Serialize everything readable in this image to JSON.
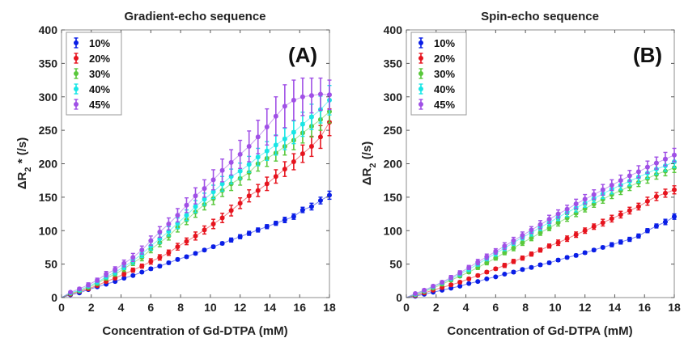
{
  "chart_data": [
    {
      "type": "scatter",
      "title": "Gradient-echo sequence",
      "panel_label": "(A)",
      "ylabel_parts": [
        "ΔR",
        "2",
        " * (/s)"
      ],
      "xlabel": "Concentration of Gd-DTPA (mM)",
      "xlim": [
        0,
        18
      ],
      "ylim": [
        0,
        400
      ],
      "x_ticks": [
        0,
        2,
        4,
        6,
        8,
        10,
        12,
        14,
        16,
        18
      ],
      "y_ticks": [
        0,
        50,
        100,
        150,
        200,
        250,
        300,
        350,
        400
      ],
      "legend_position": "top-left",
      "grid": false,
      "error_bars": true,
      "fit_lines": true,
      "x": [
        0.6,
        1.2,
        1.8,
        2.4,
        3.0,
        3.6,
        4.2,
        4.8,
        5.4,
        6.0,
        6.6,
        7.2,
        7.8,
        8.4,
        9.0,
        9.6,
        10.2,
        10.8,
        11.4,
        12.0,
        12.6,
        13.2,
        13.8,
        14.4,
        15.0,
        15.6,
        16.2,
        16.8,
        17.4,
        18.0
      ],
      "series": [
        {
          "name": "10%",
          "color": "#0a1ee6",
          "values": [
            4,
            7,
            12,
            16,
            20,
            24,
            29,
            33,
            38,
            43,
            47,
            52,
            57,
            61,
            66,
            71,
            76,
            81,
            86,
            91,
            96,
            101,
            106,
            111,
            116,
            121,
            131,
            136,
            145,
            153
          ],
          "errors": [
            1,
            1,
            1,
            1,
            1,
            1,
            1,
            1,
            1,
            2,
            2,
            2,
            2,
            2,
            2,
            2,
            2,
            2,
            3,
            3,
            3,
            3,
            3,
            3,
            4,
            4,
            4,
            5,
            5,
            6
          ]
        },
        {
          "name": "20%",
          "color": "#e6141e",
          "values": [
            5,
            9,
            13,
            18,
            24,
            29,
            35,
            41,
            47,
            54,
            60,
            67,
            76,
            84,
            92,
            101,
            110,
            119,
            130,
            141,
            152,
            160,
            170,
            181,
            192,
            203,
            215,
            226,
            240,
            262
          ],
          "errors": [
            1,
            1,
            2,
            2,
            2,
            2,
            3,
            3,
            3,
            4,
            4,
            4,
            5,
            5,
            6,
            6,
            7,
            7,
            8,
            8,
            9,
            9,
            10,
            10,
            11,
            12,
            13,
            15,
            17,
            20
          ]
        },
        {
          "name": "30%",
          "color": "#5ac83c",
          "values": [
            6,
            10,
            15,
            21,
            29,
            35,
            43,
            52,
            60,
            72,
            82,
            92,
            105,
            116,
            128,
            139,
            148,
            160,
            170,
            178,
            187,
            200,
            208,
            216,
            226,
            235,
            246,
            256,
            266,
            278
          ],
          "errors": [
            1,
            2,
            2,
            3,
            3,
            3,
            4,
            4,
            5,
            5,
            6,
            6,
            7,
            7,
            8,
            8,
            9,
            9,
            10,
            10,
            11,
            11,
            12,
            12,
            13,
            14,
            15,
            16,
            16,
            17
          ]
        },
        {
          "name": "40%",
          "color": "#19e6e6",
          "values": [
            7,
            11,
            17,
            23,
            31,
            38,
            46,
            55,
            65,
            77,
            88,
            99,
            111,
            123,
            136,
            147,
            158,
            170,
            181,
            189,
            199,
            210,
            219,
            228,
            237,
            247,
            259,
            270,
            281,
            295
          ],
          "errors": [
            1,
            2,
            2,
            3,
            3,
            4,
            4,
            5,
            5,
            6,
            7,
            7,
            8,
            8,
            9,
            9,
            10,
            11,
            11,
            12,
            12,
            13,
            14,
            15,
            16,
            17,
            18,
            19,
            20,
            22
          ]
        },
        {
          "name": "45%",
          "color": "#a050e6",
          "values": [
            8,
            13,
            19,
            26,
            35,
            42,
            51,
            60,
            71,
            85,
            98,
            110,
            123,
            138,
            152,
            163,
            176,
            190,
            202,
            214,
            226,
            240,
            255,
            271,
            286,
            295,
            300,
            302,
            304,
            303
          ],
          "errors": [
            1,
            2,
            3,
            3,
            4,
            4,
            5,
            6,
            6,
            7,
            8,
            9,
            10,
            11,
            12,
            13,
            15,
            17,
            19,
            21,
            23,
            25,
            27,
            29,
            32,
            30,
            28,
            26,
            24,
            22
          ]
        }
      ]
    },
    {
      "type": "scatter",
      "title": "Spin-echo sequence",
      "panel_label": "(B)",
      "ylabel_parts": [
        "ΔR",
        "2",
        " (/s)"
      ],
      "xlabel": "Concentration of Gd-DTPA (mM)",
      "xlim": [
        0,
        18
      ],
      "ylim": [
        0,
        400
      ],
      "x_ticks": [
        0,
        2,
        4,
        6,
        8,
        10,
        12,
        14,
        16,
        18
      ],
      "y_ticks": [
        0,
        50,
        100,
        150,
        200,
        250,
        300,
        350,
        400
      ],
      "legend_position": "top-left",
      "grid": false,
      "error_bars": true,
      "fit_lines": true,
      "x": [
        0.6,
        1.2,
        1.8,
        2.4,
        3.0,
        3.6,
        4.2,
        4.8,
        5.4,
        6.0,
        6.6,
        7.2,
        7.8,
        8.4,
        9.0,
        9.6,
        10.2,
        10.8,
        11.4,
        12.0,
        12.6,
        13.2,
        13.8,
        14.4,
        15.0,
        15.6,
        16.2,
        16.8,
        17.4,
        18.0
      ],
      "series": [
        {
          "name": "10%",
          "color": "#0a1ee6",
          "values": [
            2,
            5,
            8,
            11,
            14,
            17,
            21,
            24,
            28,
            31,
            35,
            38,
            42,
            45,
            49,
            52,
            56,
            60,
            63,
            67,
            71,
            75,
            79,
            83,
            87,
            92,
            100,
            107,
            113,
            121
          ],
          "errors": [
            1,
            1,
            1,
            1,
            1,
            1,
            1,
            1,
            1,
            1,
            1,
            2,
            2,
            2,
            2,
            2,
            2,
            2,
            2,
            2,
            2,
            2,
            3,
            3,
            3,
            3,
            3,
            3,
            4,
            4
          ]
        },
        {
          "name": "20%",
          "color": "#e6141e",
          "values": [
            3,
            7,
            11,
            15,
            19,
            23,
            28,
            33,
            38,
            43,
            48,
            54,
            59,
            65,
            71,
            77,
            82,
            88,
            94,
            100,
            106,
            112,
            118,
            124,
            130,
            136,
            144,
            151,
            156,
            161
          ],
          "errors": [
            1,
            1,
            1,
            1,
            2,
            2,
            2,
            2,
            2,
            2,
            3,
            3,
            3,
            3,
            3,
            3,
            4,
            4,
            4,
            4,
            4,
            5,
            5,
            5,
            5,
            5,
            6,
            6,
            6,
            6
          ]
        },
        {
          "name": "30%",
          "color": "#5ac83c",
          "values": [
            4,
            9,
            14,
            20,
            26,
            32,
            38,
            45,
            52,
            59,
            67,
            74,
            82,
            89,
            97,
            104,
            112,
            119,
            126,
            133,
            140,
            147,
            154,
            160,
            166,
            172,
            178,
            184,
            189,
            194
          ],
          "errors": [
            1,
            1,
            1,
            2,
            2,
            2,
            2,
            3,
            3,
            3,
            3,
            4,
            4,
            4,
            4,
            4,
            5,
            5,
            5,
            5,
            5,
            6,
            6,
            6,
            6,
            6,
            7,
            7,
            7,
            7
          ]
        },
        {
          "name": "40%",
          "color": "#19e6e6",
          "values": [
            5,
            10,
            16,
            22,
            28,
            35,
            42,
            50,
            58,
            66,
            74,
            82,
            90,
            97,
            105,
            112,
            120,
            127,
            134,
            141,
            148,
            155,
            162,
            168,
            174,
            180,
            186,
            192,
            197,
            203
          ],
          "errors": [
            1,
            1,
            2,
            2,
            2,
            3,
            3,
            3,
            3,
            4,
            4,
            4,
            4,
            5,
            5,
            5,
            5,
            6,
            6,
            6,
            6,
            7,
            7,
            7,
            7,
            8,
            8,
            8,
            8,
            9
          ]
        },
        {
          "name": "45%",
          "color": "#a050e6",
          "values": [
            6,
            11,
            17,
            23,
            30,
            37,
            45,
            53,
            61,
            69,
            77,
            85,
            93,
            101,
            109,
            117,
            125,
            132,
            140,
            147,
            154,
            161,
            168,
            175,
            182,
            188,
            195,
            201,
            207,
            213
          ],
          "errors": [
            1,
            2,
            2,
            2,
            3,
            3,
            3,
            4,
            4,
            4,
            5,
            5,
            5,
            5,
            6,
            6,
            6,
            6,
            7,
            7,
            7,
            8,
            8,
            8,
            8,
            9,
            9,
            9,
            10,
            10
          ]
        }
      ]
    }
  ]
}
